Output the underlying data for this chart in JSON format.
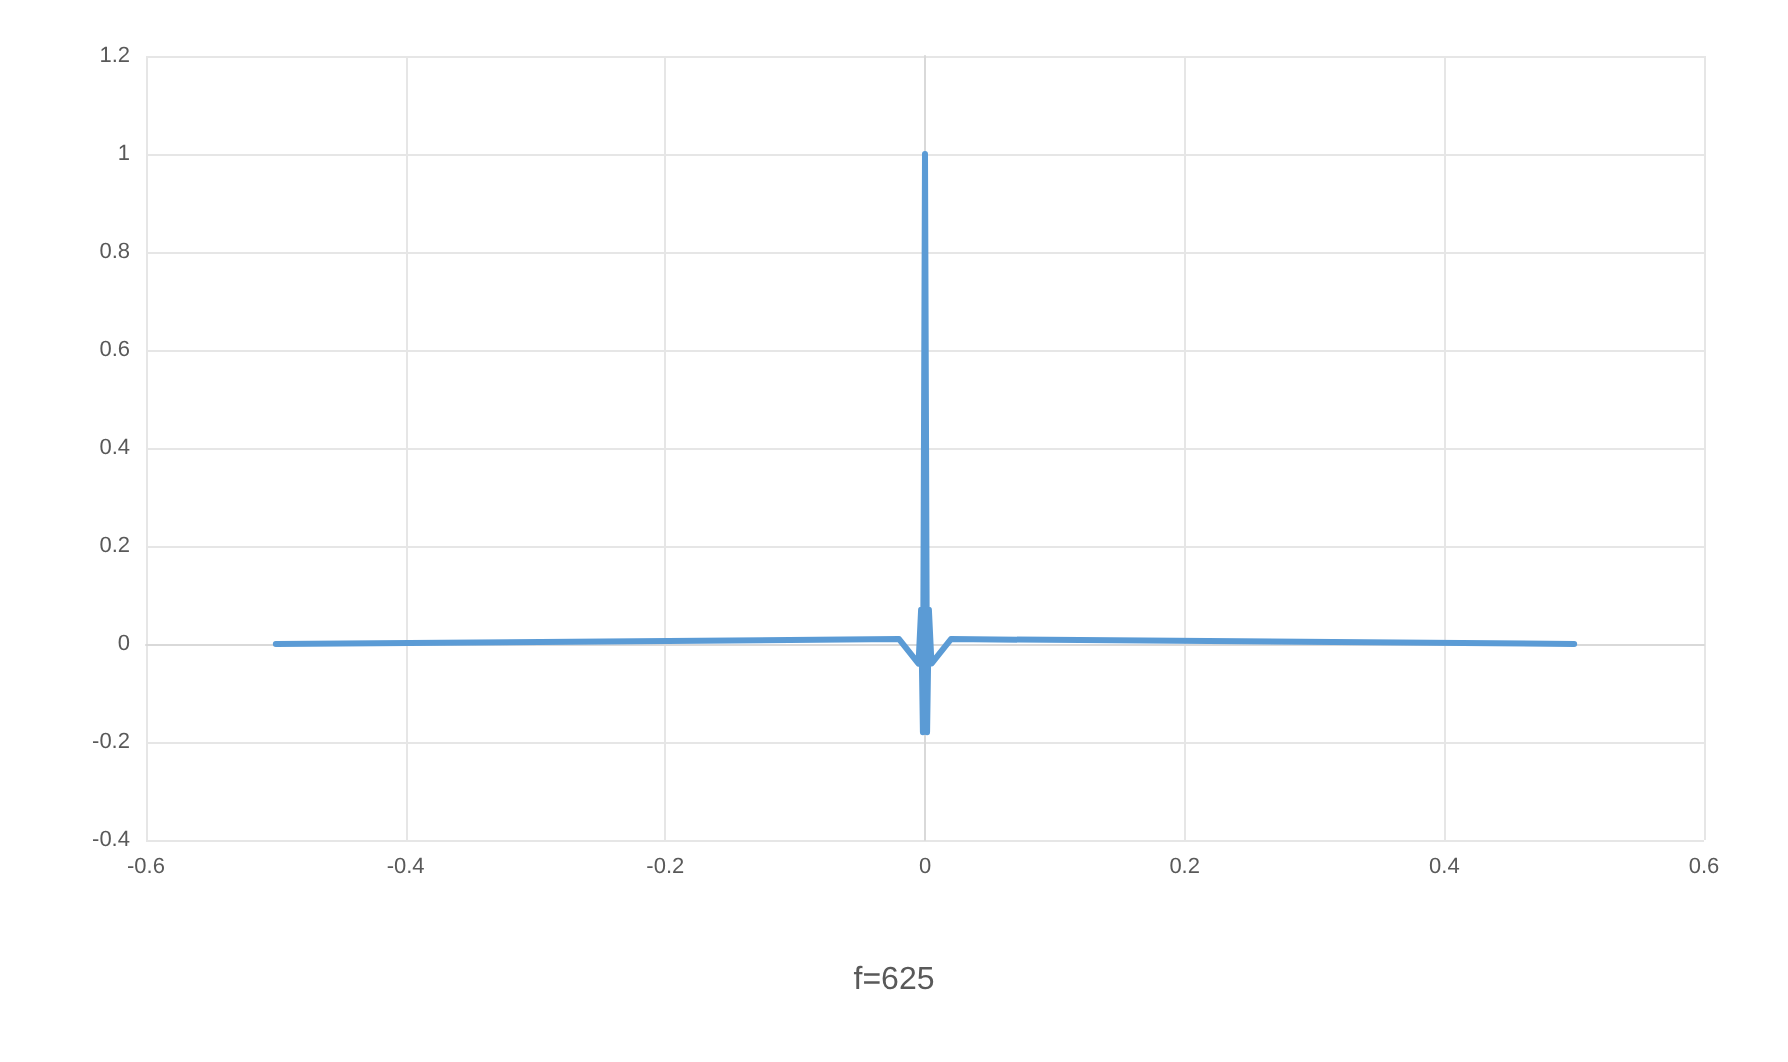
{
  "chart_data": {
    "type": "line",
    "title": "f=625",
    "x": [
      -0.5,
      -0.02,
      -0.005,
      -0.003,
      -0.0016,
      0,
      0.0016,
      0.003,
      0.005,
      0.02,
      0.5
    ],
    "series": [
      {
        "color": "#5b9bd5",
        "values": [
          0,
          0.01,
          -0.04,
          0.07,
          -0.18,
          1,
          -0.18,
          0.07,
          -0.04,
          0.01,
          0
        ]
      }
    ],
    "xlim": [
      -0.6,
      0.6
    ],
    "xticks": [
      -0.6,
      -0.4,
      -0.2,
      0,
      0.2,
      0.4,
      0.6
    ],
    "ylim": [
      -0.4,
      1.2
    ],
    "yticks": [
      -0.4,
      -0.2,
      0,
      0.2,
      0.4,
      0.6,
      0.8,
      1,
      1.2
    ],
    "grid": true,
    "marker": "none",
    "line_style": "solid"
  }
}
